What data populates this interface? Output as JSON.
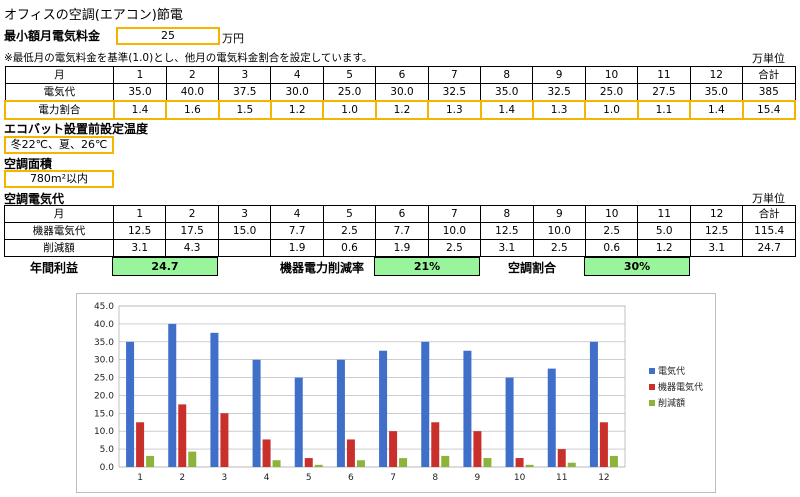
{
  "title": "オフィスの空調(エアコン)節電",
  "min_bill": {
    "label": "最小額月電気料金",
    "value": "25",
    "unit": "万円"
  },
  "note": "※最低月の電気料金を基準(1.0)とし、他月の電気料金割合を設定しています。",
  "unit_label": "万単位",
  "table1": {
    "header": [
      "月",
      "1",
      "2",
      "3",
      "4",
      "5",
      "6",
      "7",
      "8",
      "9",
      "10",
      "11",
      "12",
      "合計"
    ],
    "rows": [
      {
        "label": "電気代",
        "values": [
          "35.0",
          "40.0",
          "37.5",
          "30.0",
          "25.0",
          "30.0",
          "32.5",
          "35.0",
          "32.5",
          "25.0",
          "27.5",
          "35.0",
          "385"
        ]
      },
      {
        "label": "電力割合",
        "values": [
          "1.4",
          "1.6",
          "1.5",
          "1.2",
          "1.0",
          "1.2",
          "1.3",
          "1.4",
          "1.3",
          "1.0",
          "1.1",
          "1.4",
          "15.4"
        ]
      }
    ]
  },
  "eco_temp": {
    "label": "エコバット設置前設定温度",
    "value": "冬22℃、夏、26℃"
  },
  "area": {
    "label": "空調面積",
    "value": "780m²以内"
  },
  "ac_cost_label": "空調電気代",
  "unit_label2": "万単位",
  "table2": {
    "header": [
      "月",
      "1",
      "2",
      "3",
      "4",
      "5",
      "6",
      "7",
      "8",
      "9",
      "10",
      "11",
      "12",
      "合計"
    ],
    "rows": [
      {
        "label": "機器電気代",
        "values": [
          "12.5",
          "17.5",
          "15.0",
          "7.7",
          "2.5",
          "7.7",
          "10.0",
          "12.5",
          "10.0",
          "2.5",
          "5.0",
          "12.5",
          "115.4"
        ]
      },
      {
        "label": "削減額",
        "values": [
          "3.1",
          "4.3",
          "",
          "1.9",
          "0.6",
          "1.9",
          "2.5",
          "3.1",
          "2.5",
          "0.6",
          "1.2",
          "3.1",
          "24.7"
        ]
      }
    ]
  },
  "summary": [
    {
      "label": "年間利益",
      "value": "24.7"
    },
    {
      "label": "機器電力削減率",
      "value": "21%"
    },
    {
      "label": "空調割合",
      "value": "30%"
    }
  ],
  "chart_data": {
    "type": "bar",
    "categories": [
      "1",
      "2",
      "3",
      "4",
      "5",
      "6",
      "7",
      "8",
      "9",
      "10",
      "11",
      "12"
    ],
    "series": [
      {
        "name": "電気代",
        "color": "#3f6fc9",
        "values": [
          35.0,
          40.0,
          37.5,
          30.0,
          25.0,
          30.0,
          32.5,
          35.0,
          32.5,
          25.0,
          27.5,
          35.0
        ]
      },
      {
        "name": "機器電気代",
        "color": "#c9302c",
        "values": [
          12.5,
          17.5,
          15.0,
          7.7,
          2.5,
          7.7,
          10.0,
          12.5,
          10.0,
          2.5,
          5.0,
          12.5
        ]
      },
      {
        "name": "削減額",
        "color": "#8db43a",
        "values": [
          3.1,
          4.3,
          0,
          1.9,
          0.6,
          1.9,
          2.5,
          3.1,
          2.5,
          0.6,
          1.2,
          3.1
        ]
      }
    ],
    "yticks": [
      "0.0",
      "5.0",
      "10.0",
      "15.0",
      "20.0",
      "25.0",
      "30.0",
      "35.0",
      "40.0",
      "45.0"
    ],
    "ylim": [
      0,
      45
    ],
    "grid": true,
    "legend": "right"
  }
}
